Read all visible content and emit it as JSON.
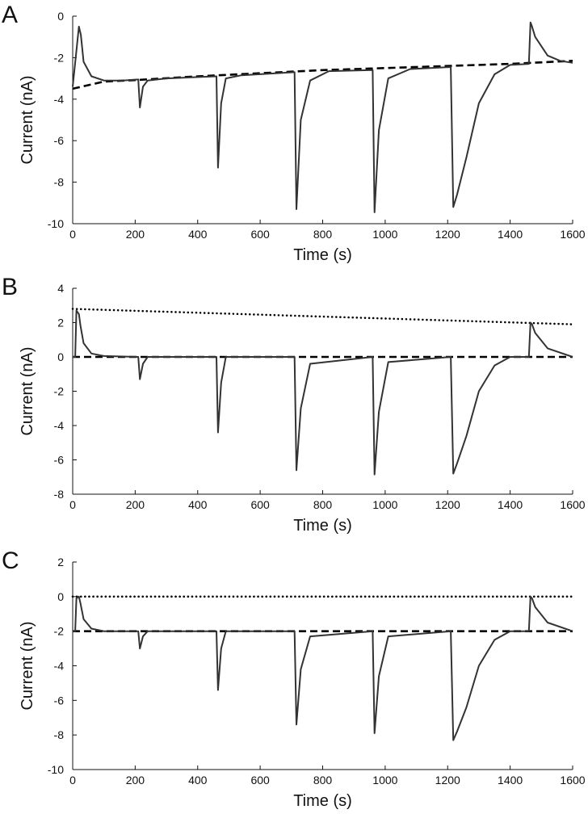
{
  "chart_data": [
    {
      "type": "line",
      "panel_label": "A",
      "xlabel": "Time (s)",
      "ylabel": "Current (nA)",
      "xlim": [
        0,
        1600
      ],
      "ylim": [
        -10,
        0
      ],
      "xticks": [
        0,
        200,
        400,
        600,
        800,
        1000,
        1200,
        1400,
        1600
      ],
      "yticks": [
        -10,
        -8,
        -6,
        -4,
        -2,
        0
      ],
      "grid": false,
      "baseline": 0,
      "recovery": [
        [
          0,
          -3.4
        ],
        [
          20,
          -0.5
        ],
        [
          26,
          -0.9
        ],
        [
          35,
          -2.2
        ],
        [
          60,
          -2.9
        ],
        [
          100,
          -3.1
        ],
        [
          210,
          -3.05
        ]
      ],
      "series": [
        {
          "style": "solid",
          "color": "#333333",
          "x": [
            0,
            20,
            26,
            35,
            60,
            100,
            160,
            210,
            215,
            225,
            240,
            300,
            460,
            465,
            475,
            490,
            540,
            710,
            716,
            730,
            760,
            820,
            960,
            966,
            980,
            1010,
            1080,
            1210,
            1218,
            1230,
            1260,
            1300,
            1350,
            1400,
            1460,
            1465,
            1470,
            1480,
            1520,
            1560,
            1600
          ],
          "y": [
            -3.4,
            -0.5,
            -0.9,
            -2.2,
            -2.9,
            -3.1,
            -3.1,
            -3.05,
            -4.4,
            -3.4,
            -3.1,
            -3.0,
            -2.9,
            -7.3,
            -4.2,
            -3.0,
            -2.85,
            -2.7,
            -9.3,
            -5.0,
            -3.1,
            -2.65,
            -2.6,
            -9.45,
            -5.5,
            -3.0,
            -2.55,
            -2.45,
            -9.2,
            -8.6,
            -6.8,
            -4.2,
            -2.8,
            -2.35,
            -2.3,
            -0.3,
            -0.5,
            -1.0,
            -1.9,
            -2.15,
            -2.25
          ]
        },
        {
          "style": "dashed",
          "color": "#000000",
          "x": [
            0,
            100,
            200,
            400,
            600,
            800,
            1000,
            1200,
            1400,
            1600
          ],
          "y": [
            -3.5,
            -3.15,
            -3.08,
            -2.9,
            -2.75,
            -2.6,
            -2.5,
            -2.4,
            -2.3,
            -2.15
          ]
        }
      ]
    },
    {
      "type": "line",
      "panel_label": "B",
      "xlabel": "Time (s)",
      "ylabel": "Current (nA)",
      "xlim": [
        0,
        1600
      ],
      "ylim": [
        -8,
        4
      ],
      "xticks": [
        0,
        200,
        400,
        600,
        800,
        1000,
        1200,
        1400,
        1600
      ],
      "yticks": [
        -8,
        -6,
        -4,
        -2,
        0,
        2,
        4
      ],
      "grid": false,
      "series": [
        {
          "style": "solid",
          "color": "#333333",
          "x": [
            0,
            8,
            12,
            20,
            25,
            35,
            60,
            100,
            210,
            215,
            225,
            240,
            460,
            465,
            475,
            490,
            710,
            716,
            730,
            760,
            960,
            966,
            980,
            1010,
            1210,
            1218,
            1230,
            1260,
            1300,
            1350,
            1400,
            1460,
            1465,
            1470,
            1480,
            1520,
            1600
          ],
          "y": [
            0,
            0,
            2.7,
            2.5,
            1.8,
            0.8,
            0.2,
            0.05,
            0.0,
            -1.3,
            -0.4,
            0.0,
            0.0,
            -4.4,
            -1.5,
            0.0,
            0.0,
            -6.6,
            -3.0,
            -0.4,
            0.0,
            -6.85,
            -3.2,
            -0.3,
            0.0,
            -6.8,
            -6.2,
            -4.6,
            -2.0,
            -0.5,
            0.0,
            0.0,
            2.0,
            1.9,
            1.4,
            0.5,
            0.0
          ]
        },
        {
          "style": "dashed",
          "color": "#000000",
          "x": [
            0,
            1600
          ],
          "y": [
            0,
            0
          ]
        },
        {
          "style": "dotted",
          "color": "#000000",
          "x": [
            0,
            1600
          ],
          "y": [
            2.8,
            1.9
          ]
        }
      ]
    },
    {
      "type": "line",
      "panel_label": "C",
      "xlabel": "Time (s)",
      "ylabel": "Current (nA)",
      "xlim": [
        0,
        1600
      ],
      "ylim": [
        -10,
        2
      ],
      "xticks": [
        0,
        200,
        400,
        600,
        800,
        1000,
        1200,
        1400,
        1600
      ],
      "yticks": [
        -10,
        -8,
        -6,
        -4,
        -2,
        0,
        2
      ],
      "grid": false,
      "series": [
        {
          "style": "solid",
          "color": "#333333",
          "x": [
            0,
            8,
            12,
            20,
            25,
            35,
            60,
            100,
            210,
            215,
            225,
            240,
            460,
            465,
            475,
            490,
            710,
            716,
            730,
            760,
            960,
            966,
            980,
            1010,
            1210,
            1218,
            1230,
            1260,
            1300,
            1350,
            1400,
            1460,
            1465,
            1470,
            1480,
            1520,
            1600
          ],
          "y": [
            -2,
            -2,
            -0.1,
            0.0,
            -0.4,
            -1.3,
            -1.85,
            -2.0,
            -2.0,
            -3.0,
            -2.3,
            -2.0,
            -2.0,
            -5.4,
            -3.0,
            -2.0,
            -2.0,
            -7.4,
            -4.2,
            -2.3,
            -2.0,
            -7.9,
            -4.6,
            -2.3,
            -2.0,
            -8.3,
            -7.8,
            -6.4,
            -4.0,
            -2.5,
            -2.0,
            -2.0,
            0.0,
            -0.1,
            -0.6,
            -1.5,
            -2.0
          ]
        },
        {
          "style": "dashed",
          "color": "#000000",
          "x": [
            0,
            1600
          ],
          "y": [
            -2,
            -2
          ]
        },
        {
          "style": "dotted",
          "color": "#000000",
          "x": [
            0,
            1600
          ],
          "y": [
            0,
            0
          ]
        }
      ]
    }
  ]
}
